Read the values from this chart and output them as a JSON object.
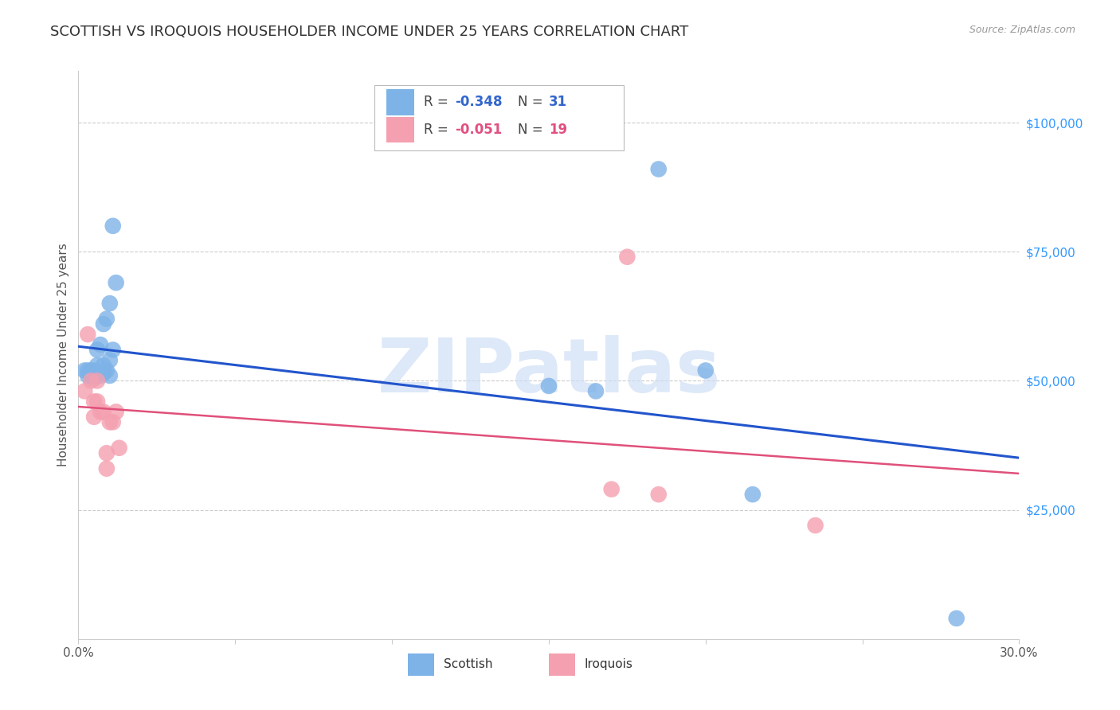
{
  "title": "SCOTTISH VS IROQUOIS HOUSEHOLDER INCOME UNDER 25 YEARS CORRELATION CHART",
  "source": "Source: ZipAtlas.com",
  "ylabel": "Householder Income Under 25 years",
  "xlim": [
    0.0,
    0.3
  ],
  "ylim": [
    0,
    110000
  ],
  "yticks": [
    0,
    25000,
    50000,
    75000,
    100000
  ],
  "ytick_labels": [
    "",
    "$25,000",
    "$50,000",
    "$75,000",
    "$100,000"
  ],
  "watermark": "ZIPatlas",
  "scottish_color": "#7eb3e8",
  "iroquois_color": "#f4a0b0",
  "scottish_line_color": "#2255cc",
  "iroquois_line_color": "#e0507a",
  "background_color": "#ffffff",
  "scottish_x": [
    0.002,
    0.003,
    0.003,
    0.004,
    0.004,
    0.005,
    0.005,
    0.005,
    0.005,
    0.006,
    0.006,
    0.006,
    0.007,
    0.007,
    0.008,
    0.008,
    0.008,
    0.009,
    0.009,
    0.01,
    0.01,
    0.01,
    0.011,
    0.011,
    0.012,
    0.15,
    0.165,
    0.185,
    0.2,
    0.215,
    0.28
  ],
  "scottish_y": [
    52000,
    52000,
    51000,
    52000,
    51000,
    52000,
    51500,
    51000,
    50500,
    56000,
    53000,
    51500,
    57000,
    51000,
    61000,
    53000,
    51500,
    62000,
    52000,
    65000,
    54000,
    51000,
    56000,
    80000,
    69000,
    49000,
    48000,
    91000,
    52000,
    28000,
    4000
  ],
  "iroquois_x": [
    0.002,
    0.003,
    0.004,
    0.005,
    0.005,
    0.006,
    0.006,
    0.007,
    0.008,
    0.009,
    0.009,
    0.01,
    0.011,
    0.012,
    0.013,
    0.17,
    0.175,
    0.185,
    0.235
  ],
  "iroquois_y": [
    48000,
    59000,
    50000,
    46000,
    43000,
    50000,
    46000,
    44000,
    44000,
    36000,
    33000,
    42000,
    42000,
    44000,
    37000,
    29000,
    74000,
    28000,
    22000
  ],
  "legend_r_scottish": "-0.348",
  "legend_n_scottish": "31",
  "legend_r_iroquois": "-0.051",
  "legend_n_iroquois": "19",
  "legend_blue_color": "#4472c4",
  "legend_pink_color": "#e06080",
  "legend_val_blue": "#3366cc",
  "legend_val_pink": "#e05080",
  "title_fontsize": 13,
  "axis_label_fontsize": 11,
  "tick_label_fontsize": 11
}
